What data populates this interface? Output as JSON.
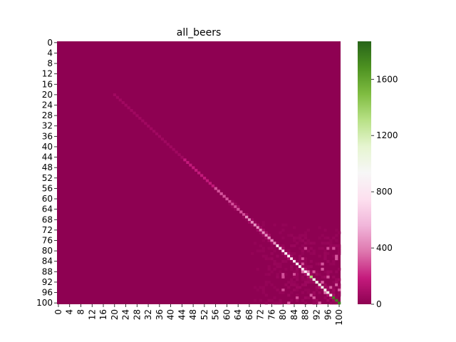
{
  "chart_data": {
    "type": "heatmap",
    "title": "all_beers",
    "xlabel": "",
    "ylabel": "",
    "n": 101,
    "x_tick_labels": [
      "0",
      "4",
      "8",
      "12",
      "16",
      "20",
      "24",
      "28",
      "32",
      "36",
      "40",
      "44",
      "48",
      "52",
      "56",
      "60",
      "64",
      "68",
      "72",
      "76",
      "80",
      "84",
      "88",
      "92",
      "96",
      "100"
    ],
    "y_tick_labels": [
      "0",
      "4",
      "8",
      "12",
      "16",
      "20",
      "24",
      "28",
      "32",
      "36",
      "40",
      "44",
      "48",
      "52",
      "56",
      "60",
      "64",
      "68",
      "72",
      "76",
      "80",
      "84",
      "88",
      "92",
      "96",
      "100"
    ],
    "colorbar": {
      "min": 0,
      "max": 1870,
      "ticks": [
        0,
        400,
        800,
        1200,
        1600
      ],
      "tick_labels": [
        "0",
        "400",
        "800",
        "1200",
        "1600"
      ],
      "colors": [
        "#8e0152",
        "#c51b7d",
        "#de77ae",
        "#f1b6da",
        "#fde0ef",
        "#f7f7f7",
        "#e6f5d0",
        "#b8e186",
        "#7fbc41",
        "#4d9221",
        "#276419"
      ]
    },
    "diagonal_estimate": [
      {
        "index_range": [
          0,
          19
        ],
        "value": 5
      },
      {
        "index_range": [
          20,
          44
        ],
        "value": 60
      },
      {
        "index_range": [
          45,
          55
        ],
        "value": 180
      },
      {
        "index_range": [
          56,
          66
        ],
        "value": 300
      },
      {
        "index_range": [
          67,
          77
        ],
        "value": 450
      },
      {
        "index_range": [
          78,
          80
        ],
        "value": 800
      },
      {
        "index_range": [
          81,
          89
        ],
        "value": 850
      },
      {
        "index_range": [
          90,
          90
        ],
        "value": 1350
      },
      {
        "index_range": [
          91,
          97
        ],
        "value": 1000
      },
      {
        "index_range": [
          98,
          100
        ],
        "value": 1750
      }
    ],
    "off_diagonal_estimate": "low values (0–250) increasing toward the lower-right region; values near 0 in the upper-left"
  }
}
